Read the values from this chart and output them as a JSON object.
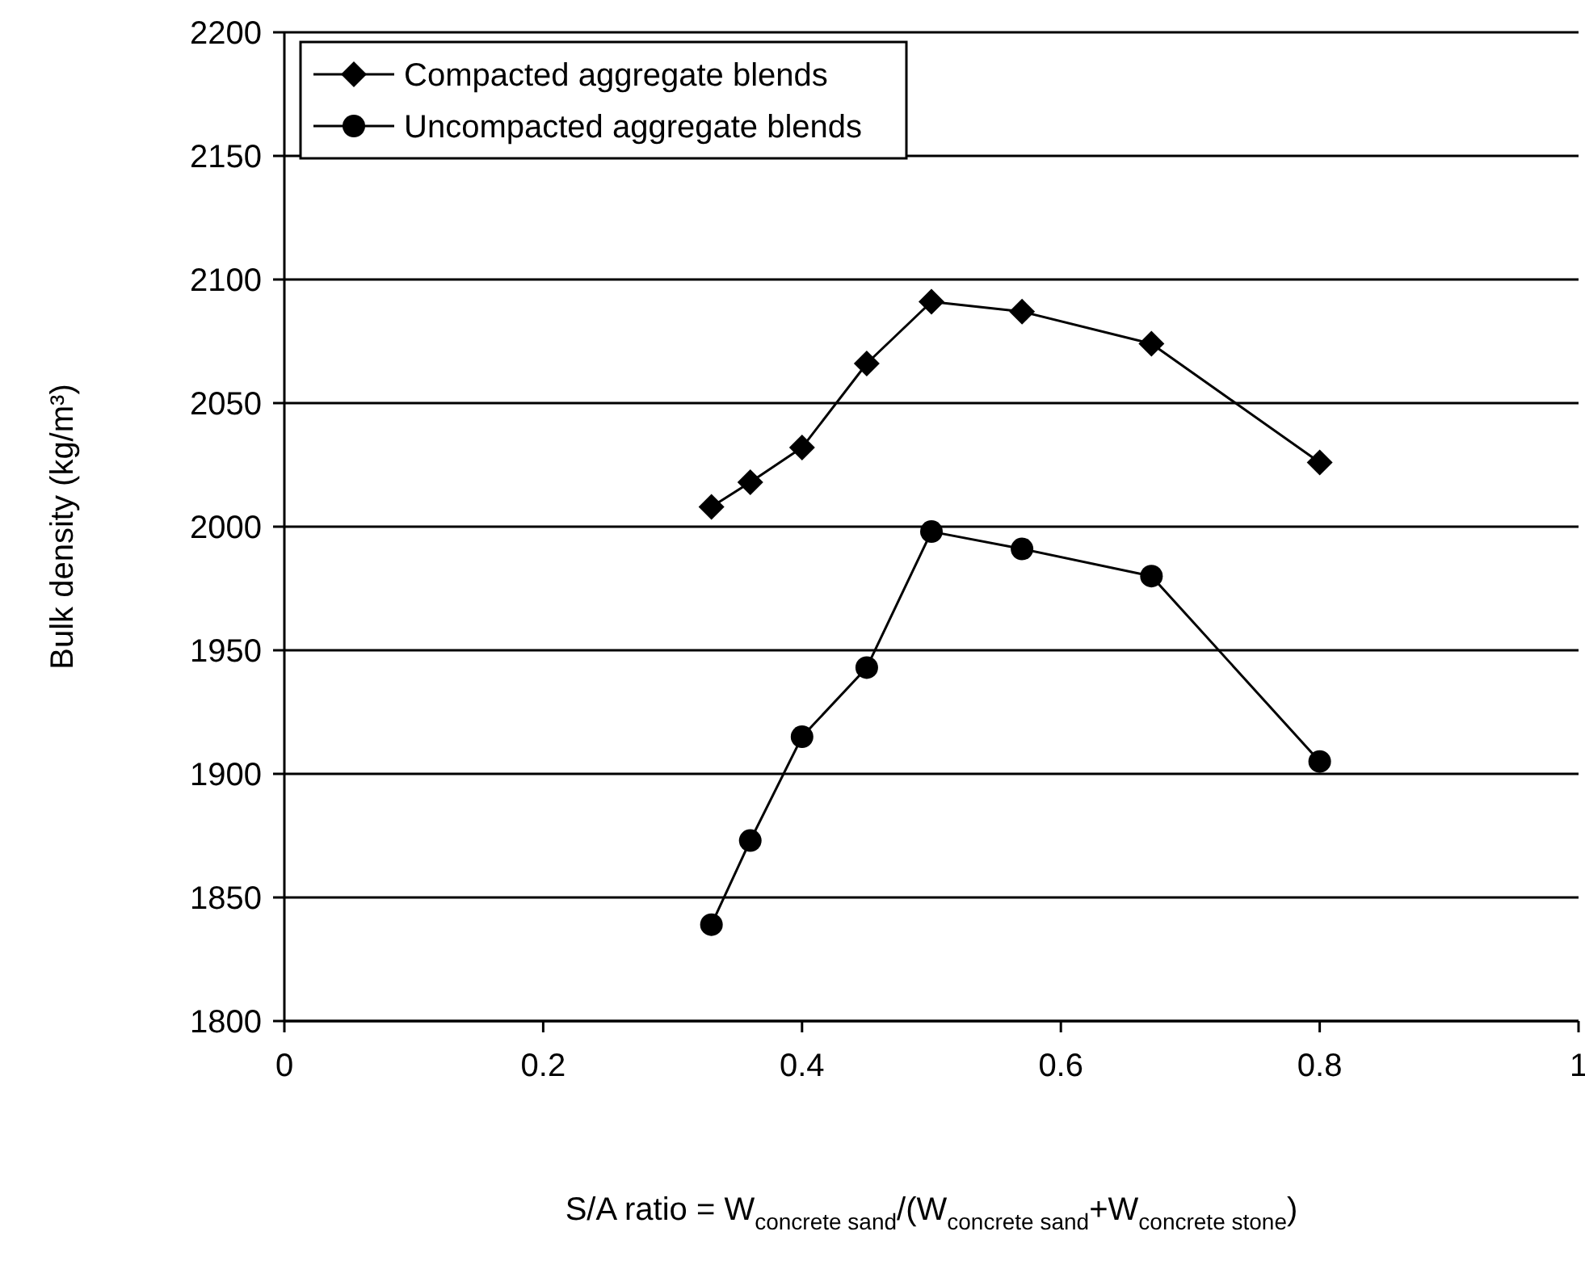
{
  "chart_data": {
    "type": "line",
    "xlabel": "S/A ratio = W$_{concrete sand}$/(W$_{concrete sand}$+W$_{concrete stone}$)",
    "ylabel": "Bulk density (kg/m³)",
    "x": [
      0.33,
      0.36,
      0.4,
      0.45,
      0.5,
      0.57,
      0.67,
      0.8
    ],
    "series": [
      {
        "name": "Compacted aggregate blends",
        "color": "#000000",
        "marker": "diamond",
        "values": [
          2008,
          2018,
          2032,
          2066,
          2091,
          2087,
          2074,
          2026
        ]
      },
      {
        "name": "Uncompacted aggregate blends",
        "color": "#000000",
        "marker": "circle",
        "values": [
          1839,
          1873,
          1915,
          1943,
          1998,
          1991,
          1980,
          1905
        ]
      }
    ],
    "xlim": [
      0,
      1
    ],
    "xticks": [
      0,
      0.2,
      0.4,
      0.6,
      0.8,
      1
    ],
    "ylim": [
      1800,
      2200
    ],
    "yticks": [
      1800,
      1850,
      1900,
      1950,
      2000,
      2050,
      2100,
      2150,
      2200
    ],
    "grid": "y",
    "legend": "top left",
    "line_style": "solid"
  }
}
